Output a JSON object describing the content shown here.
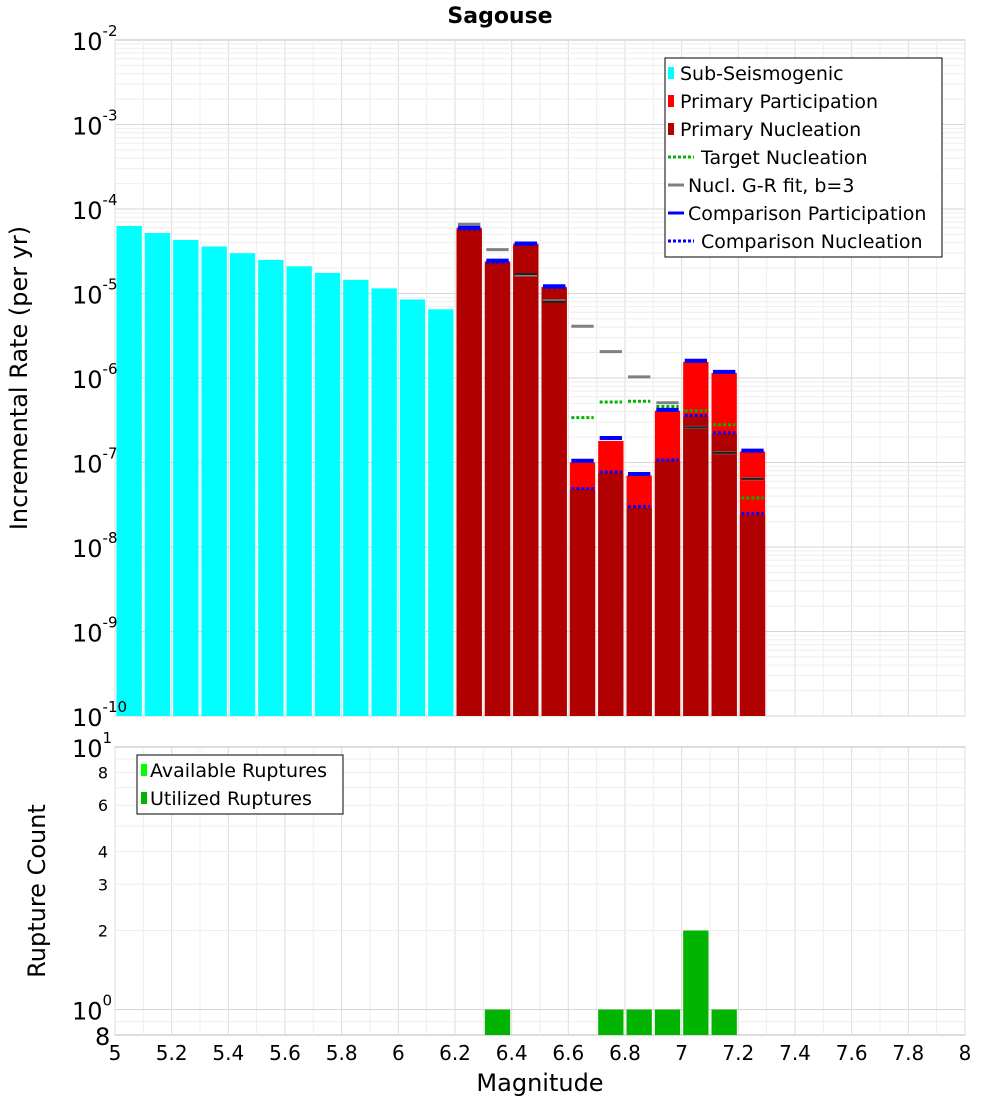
{
  "chart_data": [
    {
      "type": "bar",
      "title": "Sagouse",
      "xlabel": "",
      "ylabel": "Incremental Rate (per yr)",
      "yscale": "log",
      "xlim": [
        5,
        8
      ],
      "ylim": [
        1e-10,
        0.01
      ],
      "y_tick_labels": [
        {
          "base": "10",
          "exp": "-2",
          "value": 0.01
        },
        {
          "base": "10",
          "exp": "-3",
          "value": 0.001
        },
        {
          "base": "10",
          "exp": "-4",
          "value": 0.0001
        },
        {
          "base": "10",
          "exp": "-5",
          "value": 1e-05
        },
        {
          "base": "10",
          "exp": "-6",
          "value": 1e-06
        },
        {
          "base": "10",
          "exp": "-7",
          "value": 1e-07
        },
        {
          "base": "10",
          "exp": "-8",
          "value": 1e-08
        },
        {
          "base": "10",
          "exp": "-9",
          "value": 1e-09
        },
        {
          "base": "10",
          "exp": "-10",
          "value": 1e-10
        }
      ],
      "legend_position": "top-right",
      "legend": [
        {
          "label": "Sub-Seismogenic",
          "style": "bar",
          "color": "#00ffff"
        },
        {
          "label": "Primary Participation",
          "style": "bar",
          "color": "#ff0000"
        },
        {
          "label": "Primary Nucleation",
          "style": "bar",
          "color": "#b00000"
        },
        {
          "label": "Target Nucleation",
          "style": "dotted",
          "color": "#00b400"
        },
        {
          "label": "Nucl. G-R fit, b=3",
          "style": "solid",
          "color": "#808080"
        },
        {
          "label": "Comparison Participation",
          "style": "solid",
          "color": "#0000ff"
        },
        {
          "label": "Comparison Nucleation",
          "style": "dotted",
          "color": "#0000ff"
        }
      ],
      "bin_width": 0.1,
      "series": [
        {
          "name": "Sub-Seismogenic",
          "color": "#00ffff",
          "x": [
            5.05,
            5.15,
            5.25,
            5.35,
            5.45,
            5.55,
            5.65,
            5.75,
            5.85,
            5.95,
            6.05,
            6.15
          ],
          "values": [
            6.3e-05,
            5.2e-05,
            4.3e-05,
            3.6e-05,
            3e-05,
            2.5e-05,
            2.1e-05,
            1.75e-05,
            1.45e-05,
            1.15e-05,
            8.5e-06,
            6.5e-06
          ]
        },
        {
          "name": "Primary Participation",
          "color": "#ff0000",
          "x": [
            6.25,
            6.35,
            6.45,
            6.55,
            6.65,
            6.75,
            6.85,
            6.95,
            7.05,
            7.15,
            7.25
          ],
          "values": [
            6e-05,
            2.4e-05,
            3.9e-05,
            1.2e-05,
            1e-07,
            1.8e-07,
            7e-08,
            4.1e-07,
            1.55e-06,
            1.15e-06,
            1.35e-07
          ]
        },
        {
          "name": "Primary Nucleation",
          "color": "#b00000",
          "x": [
            6.25,
            6.35,
            6.45,
            6.55,
            6.65,
            6.75,
            6.85,
            6.95,
            7.05,
            7.15,
            7.25
          ],
          "values": [
            5.7e-05,
            2.3e-05,
            3.7e-05,
            1.15e-05,
            4.8e-08,
            7.5e-08,
            2.9e-08,
            1.05e-07,
            3.5e-07,
            2.2e-07,
            2.4e-08
          ]
        },
        {
          "name": "Target Nucleation",
          "color": "#00b400",
          "style": "dotted",
          "x": [
            6.65,
            6.75,
            6.85,
            6.95,
            7.05,
            7.15,
            7.25
          ],
          "values": [
            3.4e-07,
            5.2e-07,
            5.3e-07,
            4.6e-07,
            4.1e-07,
            2.8e-07,
            3.8e-08
          ]
        },
        {
          "name": "Nucl. G-R fit, b=3",
          "color": "#808080",
          "style": "solid",
          "x": [
            6.25,
            6.35,
            6.45,
            6.55,
            6.65,
            6.75,
            6.85,
            6.95,
            7.05,
            7.15,
            7.25
          ],
          "values": [
            6.6e-05,
            3.3e-05,
            1.65e-05,
            8.2e-06,
            4.1e-06,
            2.05e-06,
            1.03e-06,
            5.1e-07,
            2.6e-07,
            1.3e-07,
            6.4e-08
          ]
        },
        {
          "name": "Comparison Participation",
          "color": "#0000ff",
          "style": "solid",
          "x": [
            6.25,
            6.35,
            6.45,
            6.55,
            6.65,
            6.75,
            6.85,
            6.95,
            7.05,
            7.15,
            7.25
          ],
          "values": [
            6e-05,
            2.45e-05,
            3.9e-05,
            1.22e-05,
            1.05e-07,
            1.95e-07,
            7.3e-08,
            4.2e-07,
            1.6e-06,
            1.18e-06,
            1.38e-07
          ]
        },
        {
          "name": "Comparison Nucleation",
          "color": "#0000ff",
          "style": "dotted",
          "x": [
            6.25,
            6.35,
            6.45,
            6.55,
            6.65,
            6.75,
            6.85,
            6.95,
            7.05,
            7.15,
            7.25
          ],
          "values": [
            5.8e-05,
            2.35e-05,
            3.8e-05,
            1.18e-05,
            4.9e-08,
            7.7e-08,
            3e-08,
            1.07e-07,
            3.6e-07,
            2.25e-07,
            2.5e-08
          ]
        }
      ],
      "nucl_dark_ticks": {
        "color": "#202020",
        "x": [
          6.45,
          6.55,
          7.05,
          7.15,
          7.25
        ],
        "values": [
          1.7e-05,
          8e-06,
          2.6e-07,
          1.3e-07,
          6.4e-08
        ]
      }
    },
    {
      "type": "bar",
      "title": "",
      "xlabel": "Magnitude",
      "ylabel": "Rupture Count",
      "yscale": "log",
      "xlim": [
        5,
        8
      ],
      "ylim": [
        0.8,
        10
      ],
      "x_ticks": [
        5,
        5.2,
        5.4,
        5.6,
        5.8,
        6,
        6.2,
        6.4,
        6.6,
        6.8,
        7,
        7.2,
        7.4,
        7.6,
        7.8,
        8
      ],
      "x_tick_labels": [
        "5",
        "5.2",
        "5.4",
        "5.6",
        "5.8",
        "6",
        "6.2",
        "6.4",
        "6.6",
        "6.8",
        "7",
        "7.2",
        "7.4",
        "7.6",
        "7.8",
        "8"
      ],
      "y_tick_labels": [
        {
          "text": "8",
          "value": 8
        },
        {
          "text": "6",
          "value": 6
        },
        {
          "text": "4",
          "value": 4
        },
        {
          "text": "3",
          "value": 3
        },
        {
          "text": "2",
          "value": 2
        }
      ],
      "y_major_labels": [
        {
          "base": "10",
          "exp": "1",
          "value": 10
        },
        {
          "base": "10",
          "exp": "0",
          "value": 1
        },
        {
          "base": "8",
          "exp": "",
          "value": 0.8
        }
      ],
      "legend_position": "top-left",
      "legend": [
        {
          "label": "Available Ruptures",
          "color": "#00ff00"
        },
        {
          "label": "Utilized Ruptures",
          "color": "#00b400"
        }
      ],
      "series": [
        {
          "name": "Utilized Ruptures",
          "color": "#00b400",
          "x": [
            6.35,
            6.75,
            6.85,
            6.95,
            7.05,
            7.15
          ],
          "values": [
            1,
            1,
            1,
            1,
            2,
            1
          ]
        }
      ]
    }
  ]
}
